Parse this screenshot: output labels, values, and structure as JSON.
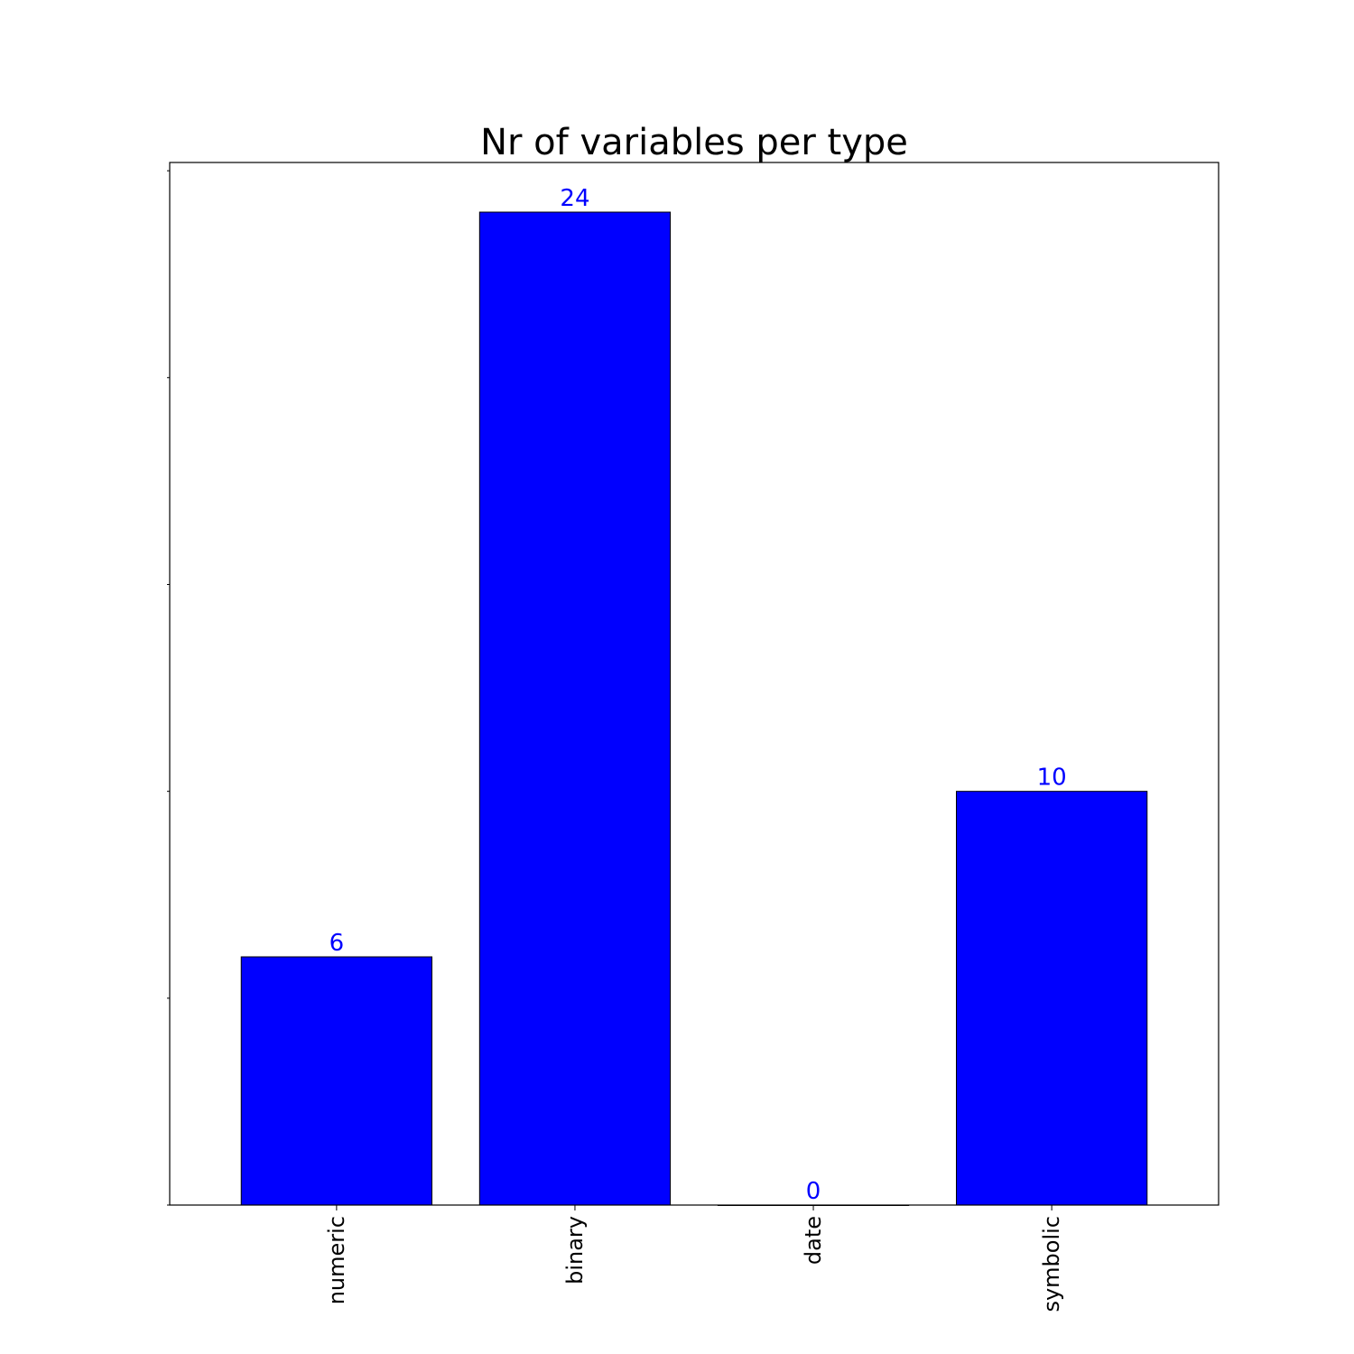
{
  "chart_data": {
    "type": "bar",
    "title": "Nr of variables per type",
    "categories": [
      "numeric",
      "binary",
      "date",
      "symbolic"
    ],
    "values": [
      6,
      24,
      0,
      10
    ],
    "value_labels": [
      "6",
      "24",
      "0",
      "10"
    ],
    "xlabel": "",
    "ylabel": "",
    "ylim": [
      0,
      25.2
    ],
    "y_tick_values": [
      0,
      5,
      10,
      15,
      20,
      25
    ],
    "y_tick_labels_visible": false,
    "grid": false,
    "legend": "none",
    "tick_label_rotation": "vertical",
    "colors": {
      "bar_fill": "#0000ff",
      "bar_edge": "#000000",
      "value_label": "#0000ff",
      "axes": "#000000"
    }
  }
}
